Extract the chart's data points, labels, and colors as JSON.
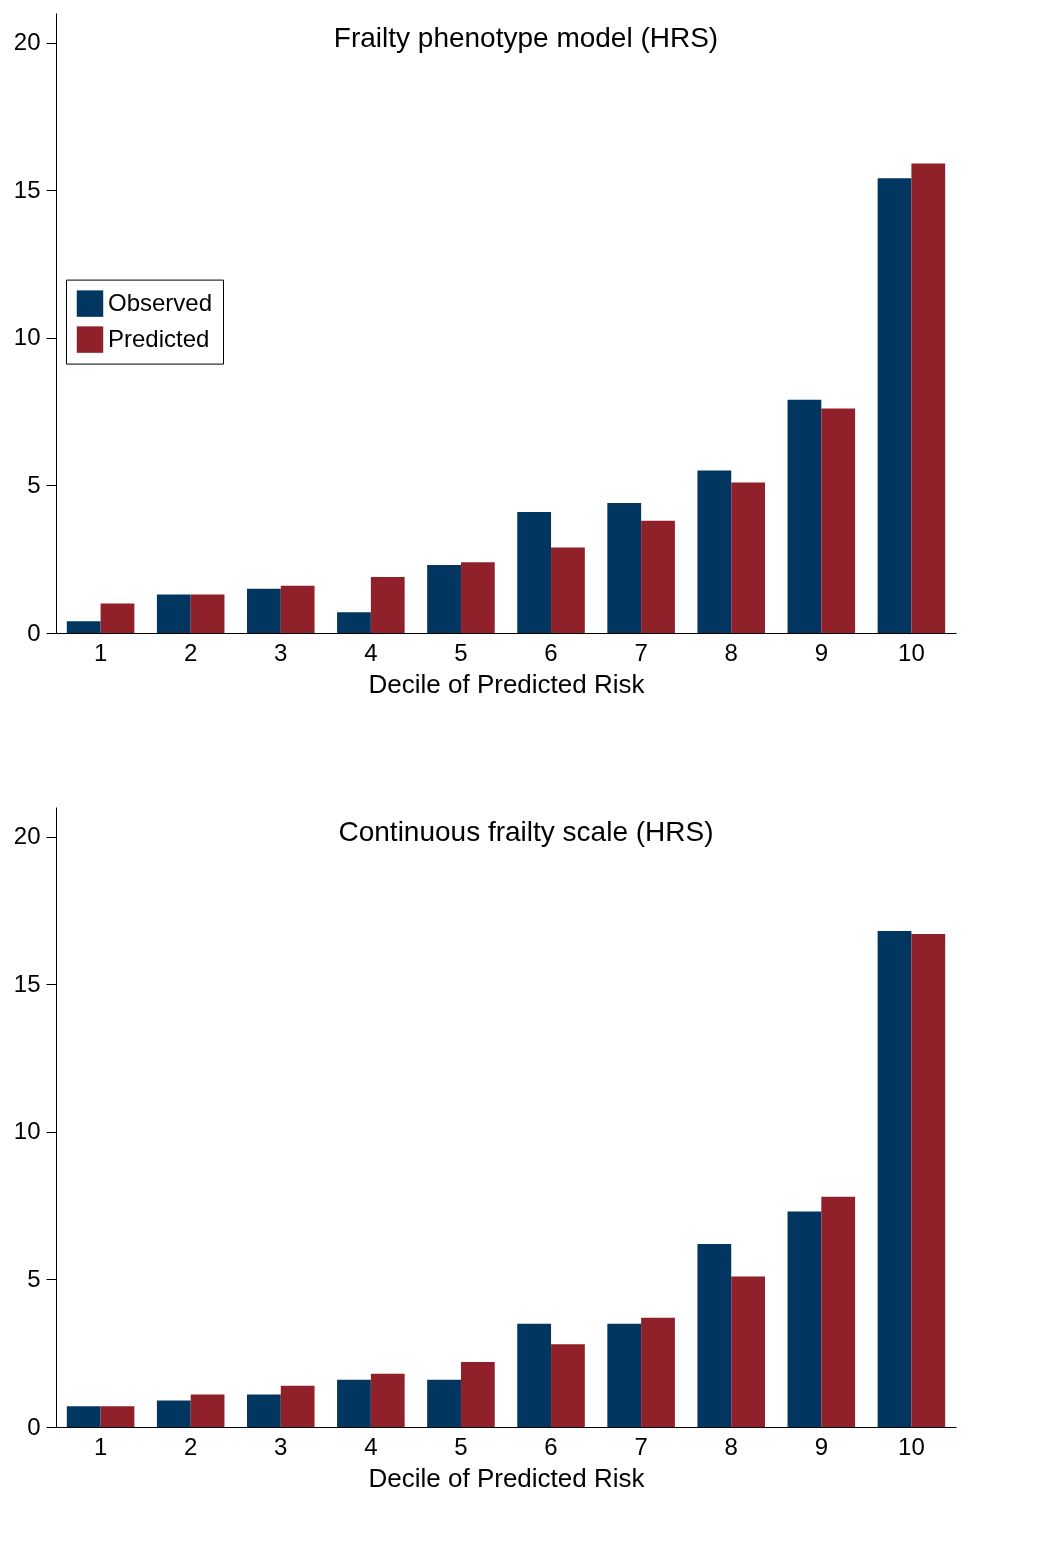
{
  "chart_data": [
    {
      "type": "bar",
      "title": "Frailty phenotype model (HRS)",
      "xlabel": "Decile of Predicted Risk",
      "categories": [
        "1",
        "2",
        "3",
        "4",
        "5",
        "6",
        "7",
        "8",
        "9",
        "10"
      ],
      "ylim": [
        0,
        21
      ],
      "yticks": [
        0,
        5,
        10,
        15,
        20
      ],
      "grid": false,
      "legend": "left",
      "series": [
        {
          "name": "Observed",
          "color": "#00365f",
          "values": [
            0.4,
            1.3,
            1.5,
            0.7,
            2.3,
            4.1,
            4.4,
            5.5,
            7.9,
            15.4
          ]
        },
        {
          "name": "Predicted",
          "color": "#90212b",
          "values": [
            1.0,
            1.3,
            1.6,
            1.9,
            2.4,
            2.9,
            3.8,
            5.1,
            7.6,
            15.9
          ]
        }
      ]
    },
    {
      "type": "bar",
      "title": "Continuous frailty scale (HRS)",
      "xlabel": "Decile of Predicted Risk",
      "categories": [
        "1",
        "2",
        "3",
        "4",
        "5",
        "6",
        "7",
        "8",
        "9",
        "10"
      ],
      "ylim": [
        0,
        21
      ],
      "yticks": [
        0,
        5,
        10,
        15,
        20
      ],
      "grid": false,
      "legend": "left",
      "series": [
        {
          "name": "Observed",
          "color": "#00365f",
          "values": [
            0.7,
            0.9,
            1.1,
            1.6,
            1.6,
            3.5,
            3.5,
            6.2,
            7.3,
            16.8
          ]
        },
        {
          "name": "Predicted",
          "color": "#90212b",
          "values": [
            0.7,
            1.1,
            1.4,
            1.8,
            2.2,
            2.8,
            3.7,
            5.1,
            7.8,
            16.7
          ]
        }
      ]
    }
  ]
}
